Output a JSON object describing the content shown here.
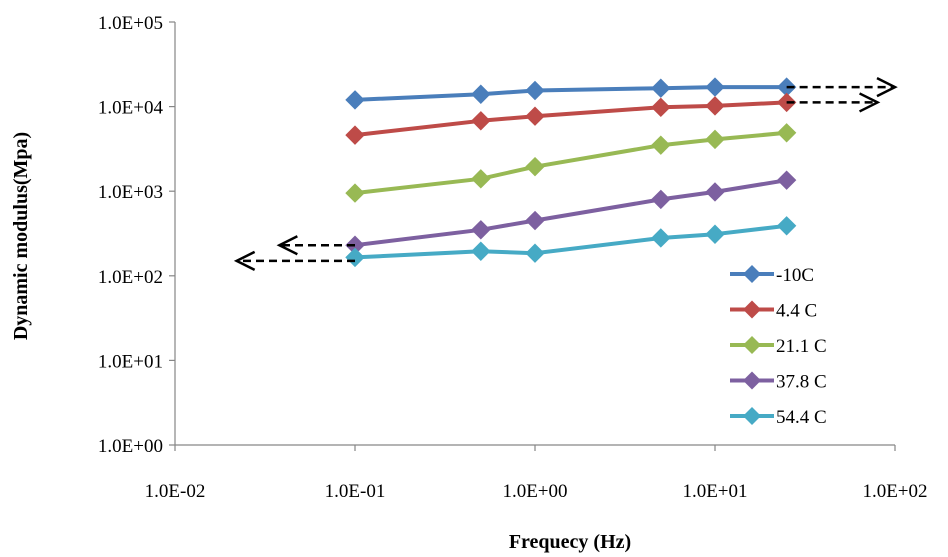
{
  "chart_data": {
    "type": "line",
    "title": "",
    "xlabel": "Frequecy (Hz)",
    "ylabel": "Dynamic modulus(Mpa)",
    "x_scale": "log",
    "y_scale": "log",
    "xlim": [
      0.01,
      100
    ],
    "ylim": [
      1,
      100000
    ],
    "x_ticks": [
      0.01,
      0.1,
      1,
      10,
      100
    ],
    "x_tick_labels": [
      "1.0E-02",
      "1.0E-01",
      "1.0E+00",
      "1.0E+01",
      "1.0E+02"
    ],
    "y_ticks": [
      1,
      10,
      100,
      1000,
      10000,
      100000
    ],
    "y_tick_labels": [
      "1.0E+00",
      "1.0E+01",
      "1.0E+02",
      "1.0E+03",
      "1.0E+04",
      "1.0E+05"
    ],
    "grid": false,
    "legend_position": "bottom-right",
    "x": [
      0.1,
      0.5,
      1,
      5,
      10,
      25
    ],
    "series": [
      {
        "name": "-10C",
        "color": "#4a7ebb",
        "values": [
          12000,
          14000,
          15500,
          16500,
          17000,
          17000
        ]
      },
      {
        "name": "4.4 C",
        "color": "#be4b48",
        "values": [
          4600,
          6800,
          7700,
          9800,
          10200,
          11200
        ]
      },
      {
        "name": "21.1 C",
        "color": "#98b954",
        "values": [
          950,
          1400,
          1950,
          3500,
          4100,
          4900
        ]
      },
      {
        "name": "37.8 C",
        "color": "#7d60a0",
        "values": [
          230,
          350,
          450,
          800,
          980,
          1350
        ]
      },
      {
        "name": "54.4 C",
        "color": "#46aac5",
        "values": [
          165,
          195,
          185,
          280,
          310,
          390
        ]
      }
    ],
    "annotations": [
      {
        "type": "arrow",
        "direction": "right",
        "from": [
          25,
          17000
        ],
        "to": [
          100,
          17000
        ]
      },
      {
        "type": "arrow",
        "direction": "right",
        "from": [
          25,
          11200
        ],
        "to": [
          80,
          11200
        ]
      },
      {
        "type": "arrow",
        "direction": "left",
        "from": [
          0.1,
          230
        ],
        "to": [
          0.038,
          230
        ]
      },
      {
        "type": "arrow",
        "direction": "left",
        "from": [
          0.1,
          150
        ],
        "to": [
          0.022,
          150
        ]
      }
    ]
  }
}
